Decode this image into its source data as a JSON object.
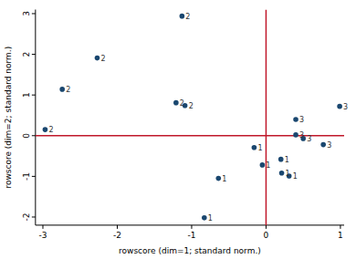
{
  "chart_data": {
    "type": "scatter",
    "x_label": "rowscore (dim=1; standard norm.)",
    "y_label": "rowscore (dim=2; standard norm.)",
    "x": [
      -1.13,
      -2.27,
      -2.74,
      -2.97,
      -1.21,
      -1.09,
      0.99,
      0.4,
      0.4,
      0.5,
      0.77,
      -0.16,
      0.2,
      -0.05,
      0.21,
      0.31,
      -0.64,
      -0.83
    ],
    "values": [
      2.94,
      1.91,
      1.14,
      0.15,
      0.81,
      0.74,
      0.72,
      0.4,
      0.02,
      -0.07,
      -0.22,
      -0.29,
      -0.58,
      -0.72,
      -0.92,
      -0.99,
      -1.05,
      -2.02
    ],
    "point_labels": [
      "2",
      "2",
      "2",
      "2",
      "2",
      "2",
      "3",
      "3",
      "3",
      "3",
      "3",
      "1",
      "1",
      "1",
      "1",
      "1",
      "1",
      "1"
    ],
    "color": "#1a476f",
    "marker": "circle",
    "xlim": [
      -3.1,
      1.05
    ],
    "ylim": [
      -2.2,
      3.1
    ],
    "xticks": [
      -3,
      -2,
      -1,
      0,
      1
    ],
    "yticks": [
      -2,
      -1,
      0,
      1,
      2,
      3
    ],
    "grid": false,
    "reference_lines": [
      {
        "axis": "x",
        "value": 0,
        "color": "#c0182a"
      },
      {
        "axis": "y",
        "value": 0,
        "color": "#c0182a"
      }
    ]
  }
}
